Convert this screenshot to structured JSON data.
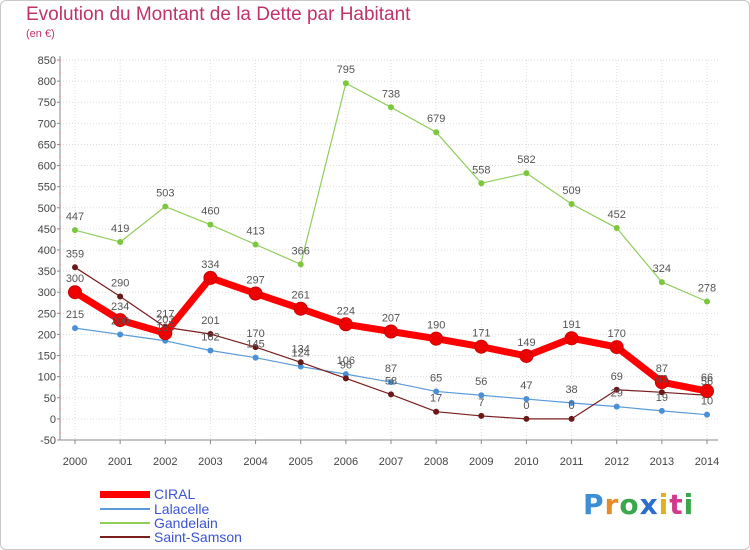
{
  "title": "Evolution du Montant de la Dette par Habitant",
  "subtitle": "(en €)",
  "brand": {
    "text": "Proxiti",
    "letter_colors": [
      "#3a8fd6",
      "#e88a2a",
      "#3aa84a",
      "#2a6fd0",
      "#e0b020",
      "#d23a8a",
      "#3aa84a"
    ]
  },
  "chart_data": {
    "type": "line",
    "x": [
      "2000",
      "2001",
      "2002",
      "2003",
      "2004",
      "2005",
      "2006",
      "2007",
      "2008",
      "2009",
      "2010",
      "2011",
      "2012",
      "2013",
      "2014"
    ],
    "ylim": [
      -50,
      850
    ],
    "ytick_step": 50,
    "yticks": [
      "-50",
      "0",
      "50",
      "100",
      "150",
      "200",
      "250",
      "300",
      "350",
      "400",
      "450",
      "500",
      "550",
      "600",
      "650",
      "700",
      "750",
      "800",
      "850"
    ],
    "grid": true,
    "legend_position": "bottom-left",
    "series": [
      {
        "name": "Gandelain",
        "color": "#8fce5a",
        "marker_color": "#7cc83c",
        "line_width": 1.2,
        "values": [
          447,
          419,
          503,
          460,
          413,
          366,
          795,
          738,
          679,
          558,
          582,
          509,
          452,
          324,
          278
        ],
        "labels": [
          "447",
          "419",
          "503",
          "460",
          "413",
          "366",
          "795",
          "738",
          "679",
          "558",
          "582",
          "509",
          "452",
          "324",
          "278"
        ]
      },
      {
        "name": "Lalacelle",
        "color": "#5a9ad8",
        "marker_color": "#4a90d9",
        "line_width": 1.2,
        "values": [
          215,
          200,
          185,
          162,
          145,
          124,
          106,
          87,
          65,
          56,
          47,
          38,
          29,
          19,
          10
        ],
        "labels": [
          "215",
          "200",
          "185",
          "162",
          "145",
          "124",
          "106",
          "87",
          "65",
          "56",
          "47",
          "38",
          "29",
          "19",
          "10"
        ]
      },
      {
        "name": "Saint-Samson",
        "color": "#7a1e1e",
        "marker_color": "#6a1818",
        "line_width": 1.2,
        "values": [
          359,
          290,
          217,
          201,
          170,
          134,
          96,
          58,
          17,
          7,
          0,
          0,
          69,
          63,
          56
        ],
        "labels": [
          "359",
          "290",
          "217",
          "201",
          "170",
          "134",
          "96",
          "58",
          "17",
          "7",
          "0",
          "0",
          "69",
          "63",
          "56"
        ]
      },
      {
        "name": "CIRAL",
        "color": "#ff0000",
        "marker_color": "#ee0000",
        "line_width": 7,
        "values": [
          300,
          234,
          203,
          334,
          297,
          261,
          224,
          207,
          190,
          171,
          149,
          191,
          170,
          87,
          66
        ],
        "labels": [
          "300",
          "234",
          "203",
          "334",
          "297",
          "261",
          "224",
          "207",
          "190",
          "171",
          "149",
          "191",
          "170",
          "87",
          "66"
        ]
      }
    ],
    "legend": [
      "CIRAL",
      "Lalacelle",
      "Gandelain",
      "Saint-Samson"
    ]
  }
}
